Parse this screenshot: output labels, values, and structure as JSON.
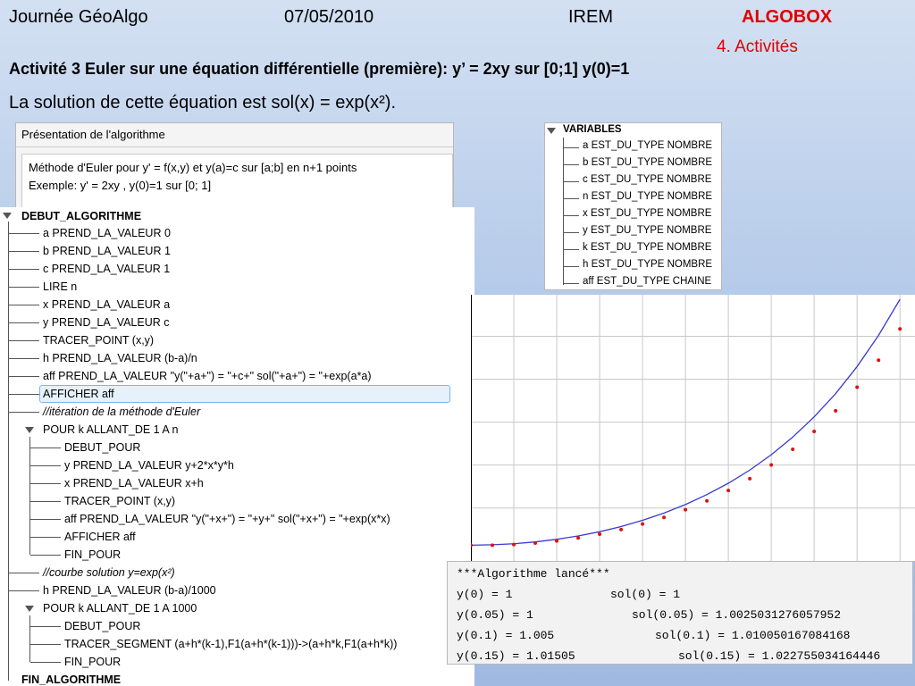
{
  "header": {
    "event": "Journée GéoAlgo",
    "date": "07/05/2010",
    "org": "IREM",
    "brand": "ALGOBOX",
    "section": "4. Activités"
  },
  "title": "Activité 3  Euler sur une équation différentielle (première): y’ = 2xy  sur [0;1]  y(0)=1",
  "subtitle": "La solution de cette équation est sol(x) = exp(x²).",
  "presentation": {
    "title": "Présentation de l'algorithme",
    "lines": [
      "Méthode d'Euler pour y' = f(x,y)  et y(a)=c sur [a;b] en  n+1 points",
      "Exemple:  y' = 2xy , y(0)=1  sur [0; 1]"
    ]
  },
  "variables": {
    "title": "VARIABLES",
    "items": [
      "a EST_DU_TYPE NOMBRE",
      "b EST_DU_TYPE NOMBRE",
      "c EST_DU_TYPE NOMBRE",
      "n EST_DU_TYPE NOMBRE",
      "x EST_DU_TYPE NOMBRE",
      "y EST_DU_TYPE NOMBRE",
      "k EST_DU_TYPE NOMBRE",
      "h EST_DU_TYPE NOMBRE",
      "aff EST_DU_TYPE CHAINE"
    ]
  },
  "algorithm": {
    "lines": [
      "DEBUT_ALGORITHME",
      "a PREND_LA_VALEUR 0",
      "b PREND_LA_VALEUR 1",
      "c PREND_LA_VALEUR 1",
      "LIRE n",
      "x PREND_LA_VALEUR a",
      "y PREND_LA_VALEUR c",
      "TRACER_POINT (x,y)",
      "h PREND_LA_VALEUR (b-a)/n",
      "aff PREND_LA_VALEUR \"y(\"+a+\") = \"+c+\"         sol(\"+a+\") = \"+exp(a*a)",
      "AFFICHER aff",
      "//itération de la méthode d'Euler",
      "POUR k ALLANT_DE 1 A n",
      "DEBUT_POUR",
      "y PREND_LA_VALEUR y+2*x*y*h",
      "x PREND_LA_VALEUR x+h",
      "TRACER_POINT (x,y)",
      "aff PREND_LA_VALEUR \"y(\"+x+\") = \"+y+\"         sol(\"+x+\") = \"+exp(x*x)",
      "AFFICHER aff",
      "FIN_POUR",
      "//courbe solution y=exp(x²)",
      "h PREND_LA_VALEUR (b-a)/1000",
      "POUR k ALLANT_DE 1 A 1000",
      "DEBUT_POUR",
      "TRACER_SEGMENT (a+h*(k-1),F1(a+h*(k-1)))->(a+h*k,F1(a+h*k))",
      "FIN_POUR",
      "FIN_ALGORITHME"
    ]
  },
  "console": {
    "title": "***Algorithme lancé***",
    "rows": [
      [
        "y(0) = 1",
        "sol(0) = 1"
      ],
      [
        "y(0.05) = 1",
        "sol(0.05) = 1.0025031276057952"
      ],
      [
        "y(0.1) = 1.005",
        "sol(0.1) = 1.010050167084168"
      ],
      [
        "y(0.15) = 1.01505",
        "sol(0.15) = 1.022755034164446"
      ]
    ]
  },
  "plot": {
    "x": [
      0,
      0.05,
      0.1,
      0.15,
      0.2,
      0.25,
      0.3,
      0.35,
      0.4,
      0.45,
      0.5,
      0.55,
      0.6,
      0.65,
      0.7,
      0.75,
      0.8,
      0.85,
      0.9,
      0.95,
      1
    ],
    "euler": [
      1,
      1,
      1.005,
      1.015,
      1.03,
      1.051,
      1.077,
      1.109,
      1.148,
      1.194,
      1.248,
      1.31,
      1.382,
      1.465,
      1.561,
      1.67,
      1.795,
      1.939,
      2.104,
      2.293,
      2.511
    ],
    "exact": [
      1,
      1.003,
      1.01,
      1.023,
      1.041,
      1.065,
      1.094,
      1.13,
      1.174,
      1.225,
      1.284,
      1.354,
      1.433,
      1.525,
      1.632,
      1.755,
      1.897,
      2.059,
      2.248,
      2.466,
      2.718
    ],
    "point_color": "#e01010",
    "curve_color": "#3a3ad0",
    "xlim": [
      0,
      1.035
    ],
    "ylim": [
      0.89,
      2.75
    ],
    "xticks": [
      0.1,
      0.2,
      0.3,
      0.4,
      0.5,
      0.6,
      0.7,
      0.8,
      0.9,
      1
    ],
    "yticks": [
      1.26,
      1.56,
      1.86,
      2.16,
      2.46
    ],
    "grid": true
  }
}
